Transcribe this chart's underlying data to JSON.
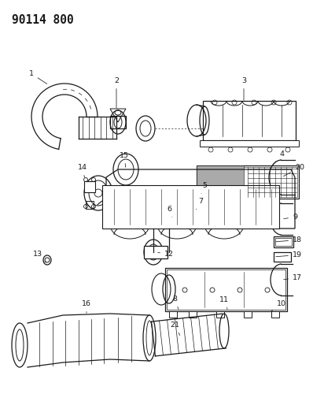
{
  "title": "90114 800",
  "bg": "#f5f5f0",
  "fg": "#1a1a1a",
  "title_fontsize": 10.5,
  "label_fontsize": 6.8
}
